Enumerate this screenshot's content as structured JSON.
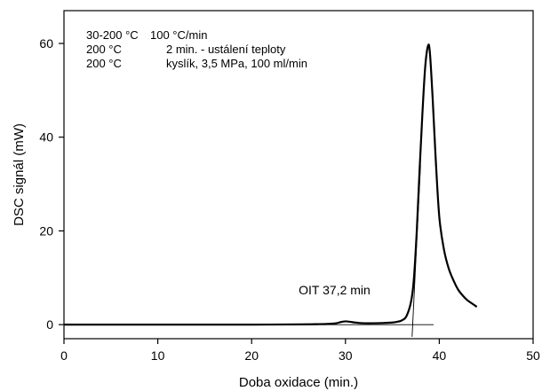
{
  "chart_data": {
    "type": "line",
    "xlabel": "Doba oxidace (min.)",
    "ylabel": "DSC signál (mW)",
    "xlim": [
      0,
      50
    ],
    "ylim": [
      -3,
      67
    ],
    "x_ticks": [
      0,
      10,
      20,
      30,
      40,
      50
    ],
    "y_ticks": [
      0,
      20,
      40,
      60
    ],
    "grid": false,
    "notes": [
      {
        "col1": "30-200 °C",
        "col2": "100 °C/min"
      },
      {
        "col1": "200 °C",
        "col2": "2 min. - ustálení teploty"
      },
      {
        "col1": "200 °C",
        "col2": "kyslík, 3,5 MPa, 100 ml/min"
      }
    ],
    "annotation": {
      "text": "OIT 37,2 min",
      "x": 37.2
    },
    "series": [
      {
        "x": [
          0,
          5,
          10,
          15,
          20,
          25,
          27,
          28,
          29,
          29.5,
          30,
          30.5,
          31,
          31.5,
          32,
          33,
          34,
          35,
          35.5,
          36,
          36.5,
          37,
          37.3,
          37.6,
          37.9,
          38.2,
          38.5,
          38.8,
          39.0,
          39.3,
          39.6,
          40.0,
          40.5,
          41.0,
          41.5,
          42.0,
          42.5,
          43.0,
          43.5,
          44.0
        ],
        "y": [
          0,
          0,
          0,
          0,
          0,
          0.05,
          0.1,
          0.15,
          0.3,
          0.55,
          0.7,
          0.6,
          0.45,
          0.35,
          0.3,
          0.3,
          0.35,
          0.45,
          0.6,
          0.9,
          1.8,
          5,
          10,
          20,
          33,
          45,
          55,
          59.5,
          58,
          48,
          36,
          23,
          16,
          12,
          9.5,
          7.5,
          6.2,
          5.2,
          4.5,
          3.8
        ]
      }
    ],
    "tangent_lines": [
      {
        "x": [
          37.1,
          38.0
        ],
        "y": [
          -2.6,
          34
        ]
      },
      {
        "x": [
          0,
          39.4
        ],
        "y": [
          0,
          0
        ]
      }
    ]
  }
}
